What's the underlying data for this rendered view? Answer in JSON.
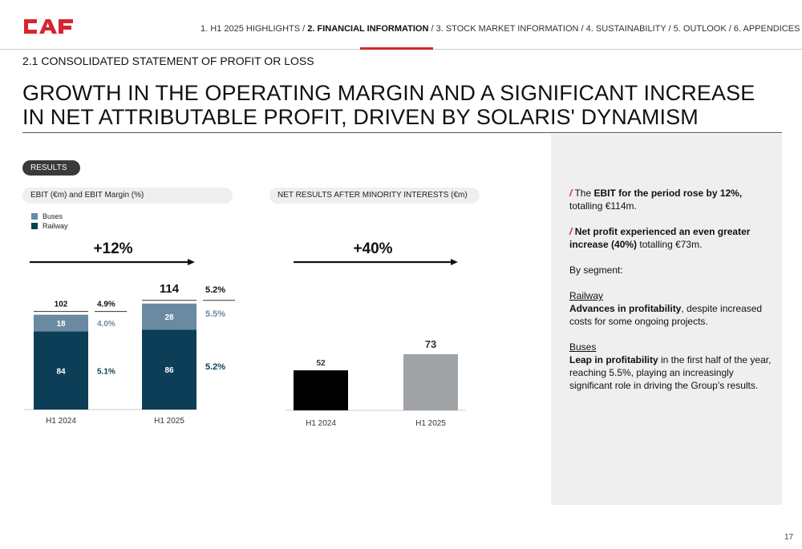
{
  "brand": {
    "logo_text": "CAF",
    "accent_color": "#d7262f"
  },
  "nav": {
    "items": [
      {
        "label": "1. H1 2025 HIGHLIGHTS",
        "active": false
      },
      {
        "label": "2. FINANCIAL INFORMATION",
        "active": true
      },
      {
        "label": "3. STOCK MARKET INFORMATION",
        "active": false
      },
      {
        "label": "4. SUSTAINABILITY",
        "active": false
      },
      {
        "label": "5. OUTLOOK",
        "active": false
      },
      {
        "label": "6. APPENDICES",
        "active": false
      }
    ]
  },
  "section_title": "2.1 CONSOLIDATED STATEMENT OF PROFIT OR LOSS",
  "headline": "GROWTH IN THE OPERATING MARGIN AND A SIGNIFICANT INCREASE IN NET ATTRIBUTABLE PROFIT, DRIVEN BY SOLARIS' DYNAMISM",
  "results_label": "RESULTS",
  "ebit_chart_label": "EBIT (€m) and EBIT Margin (%)",
  "net_chart_label": "NET RESULTS AFTER MINORITY INTERESTS (€m)",
  "legend": {
    "buses": "Buses",
    "railway": "Railway"
  },
  "growth": {
    "ebit": "+12%",
    "net": "+40%"
  },
  "panel": {
    "p1_pre": "The ",
    "p1_bold": "EBIT for the period rose by 12%,",
    "p1_post": " totalling €114m.",
    "p2_bold": "Net profit experienced an even greater increase (40%)",
    "p2_post": " totalling €73m.",
    "by_segment": "By segment:",
    "railway_head": "Railway",
    "railway_bold": "Advances in profitability",
    "railway_post": ", despite increased costs for some ongoing projects.",
    "buses_head": "Buses",
    "buses_bold": "Leap in profitability",
    "buses_post": " in the first half of the year, reaching 5.5%, playing an increasingly significant role in driving the Group’s results."
  },
  "page_number": "17",
  "colors": {
    "railway": "#0c3e57",
    "buses": "#6a8aa1",
    "net_2024": "#000000",
    "net_2025": "#9fa3a6"
  },
  "chart_data": [
    {
      "type": "bar",
      "stacked": true,
      "categories": [
        "H1 2024",
        "H1 2025"
      ],
      "series": [
        {
          "name": "Railway",
          "values": [
            84,
            86
          ],
          "margins": [
            "5.1%",
            "5.2%"
          ]
        },
        {
          "name": "Buses",
          "values": [
            18,
            28
          ],
          "margins": [
            "4.0%",
            "5.5%"
          ]
        }
      ],
      "totals": [
        102,
        114
      ],
      "total_margins": [
        "4.9%",
        "5.2%"
      ],
      "title": "EBIT (€m) and EBIT Margin (%)",
      "legend": "top-left",
      "grid": false
    },
    {
      "type": "bar",
      "categories": [
        "H1 2024",
        "H1 2025"
      ],
      "values": [
        52,
        73
      ],
      "title": "NET RESULTS AFTER MINORITY INTERESTS (€m)",
      "grid": false
    }
  ]
}
